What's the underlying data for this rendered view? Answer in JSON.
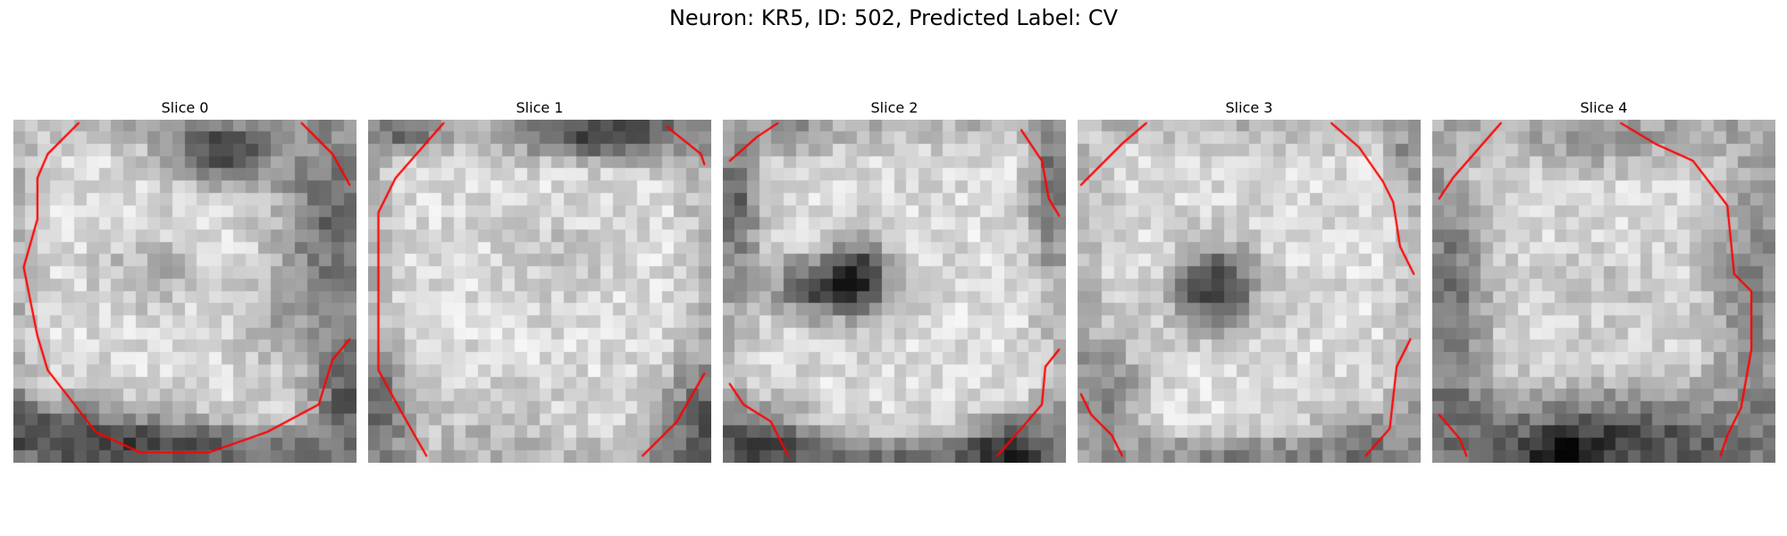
{
  "figure": {
    "title": "Neuron: KR5, ID: 502, Predicted Label: CV"
  },
  "colors": {
    "contour": "#ff0000",
    "background": "#ffffff"
  },
  "slices": [
    {
      "label": "Slice 0",
      "dark_spots": [
        [
          0.6,
          0.1,
          0.16,
          0.09,
          0.55
        ],
        [
          0.9,
          0.3,
          0.14,
          0.3,
          0.4
        ],
        [
          0.1,
          0.9,
          0.3,
          0.1,
          0.4
        ],
        [
          0.5,
          0.95,
          0.4,
          0.08,
          0.4
        ],
        [
          0.95,
          0.8,
          0.1,
          0.2,
          0.35
        ],
        [
          0.4,
          0.45,
          0.15,
          0.1,
          0.18
        ],
        [
          0.75,
          0.6,
          0.12,
          0.12,
          0.15
        ]
      ],
      "contours": [
        [
          [
            0.19,
            0.01
          ],
          [
            0.1,
            0.1
          ],
          [
            0.07,
            0.17
          ],
          [
            0.07,
            0.29
          ],
          [
            0.03,
            0.43
          ],
          [
            0.07,
            0.63
          ],
          [
            0.1,
            0.73
          ],
          [
            0.24,
            0.91
          ],
          [
            0.37,
            0.97
          ],
          [
            0.57,
            0.97
          ],
          [
            0.74,
            0.91
          ],
          [
            0.89,
            0.83
          ],
          [
            0.93,
            0.7
          ],
          [
            0.98,
            0.64
          ]
        ],
        [
          [
            0.84,
            0.01
          ],
          [
            0.93,
            0.1
          ],
          [
            0.98,
            0.19
          ]
        ]
      ]
    },
    {
      "label": "Slice 1",
      "dark_spots": [
        [
          0.7,
          0.05,
          0.25,
          0.07,
          0.55
        ],
        [
          0.1,
          0.05,
          0.12,
          0.06,
          0.35
        ],
        [
          0.95,
          0.9,
          0.12,
          0.18,
          0.4
        ],
        [
          0.05,
          0.85,
          0.08,
          0.18,
          0.35
        ],
        [
          0.35,
          0.85,
          0.2,
          0.1,
          0.12
        ],
        [
          0.55,
          0.4,
          0.15,
          0.12,
          0.1
        ]
      ],
      "contours": [
        [
          [
            0.22,
            0.01
          ],
          [
            0.08,
            0.17
          ],
          [
            0.03,
            0.27
          ],
          [
            0.03,
            0.73
          ],
          [
            0.09,
            0.84
          ],
          [
            0.17,
            0.98
          ]
        ],
        [
          [
            0.87,
            0.02
          ],
          [
            0.97,
            0.1
          ],
          [
            0.98,
            0.13
          ]
        ],
        [
          [
            0.8,
            0.98
          ],
          [
            0.9,
            0.88
          ],
          [
            0.98,
            0.74
          ]
        ]
      ]
    },
    {
      "label": "Slice 2",
      "dark_spots": [
        [
          0.31,
          0.49,
          0.16,
          0.09,
          0.6
        ],
        [
          0.4,
          0.43,
          0.08,
          0.11,
          0.4
        ],
        [
          0.05,
          0.25,
          0.06,
          0.22,
          0.35
        ],
        [
          0.95,
          0.2,
          0.06,
          0.22,
          0.35
        ],
        [
          0.1,
          0.93,
          0.18,
          0.1,
          0.45
        ],
        [
          0.85,
          0.95,
          0.15,
          0.1,
          0.5
        ],
        [
          0.5,
          0.98,
          0.35,
          0.05,
          0.3
        ],
        [
          0.2,
          0.05,
          0.1,
          0.05,
          0.25
        ]
      ],
      "contours": [
        [
          [
            0.02,
            0.12
          ],
          [
            0.1,
            0.05
          ],
          [
            0.16,
            0.01
          ]
        ],
        [
          [
            0.87,
            0.03
          ],
          [
            0.93,
            0.12
          ],
          [
            0.95,
            0.23
          ],
          [
            0.98,
            0.28
          ]
        ],
        [
          [
            0.02,
            0.77
          ],
          [
            0.06,
            0.83
          ],
          [
            0.14,
            0.88
          ],
          [
            0.19,
            0.98
          ]
        ],
        [
          [
            0.8,
            0.98
          ],
          [
            0.87,
            0.9
          ],
          [
            0.93,
            0.83
          ],
          [
            0.94,
            0.72
          ],
          [
            0.98,
            0.67
          ]
        ]
      ]
    },
    {
      "label": "Slice 3",
      "dark_spots": [
        [
          0.4,
          0.49,
          0.12,
          0.12,
          0.65
        ],
        [
          0.1,
          0.8,
          0.1,
          0.18,
          0.3
        ],
        [
          0.85,
          0.92,
          0.15,
          0.1,
          0.3
        ],
        [
          0.5,
          0.97,
          0.3,
          0.05,
          0.22
        ],
        [
          0.95,
          0.1,
          0.05,
          0.1,
          0.2
        ]
      ],
      "contours": [
        [
          [
            0.01,
            0.19
          ],
          [
            0.13,
            0.07
          ],
          [
            0.2,
            0.01
          ]
        ],
        [
          [
            0.74,
            0.01
          ],
          [
            0.82,
            0.08
          ],
          [
            0.89,
            0.18
          ],
          [
            0.92,
            0.24
          ],
          [
            0.94,
            0.37
          ],
          [
            0.98,
            0.45
          ]
        ],
        [
          [
            0.01,
            0.8
          ],
          [
            0.04,
            0.86
          ],
          [
            0.1,
            0.92
          ],
          [
            0.13,
            0.98
          ]
        ],
        [
          [
            0.84,
            0.98
          ],
          [
            0.91,
            0.9
          ],
          [
            0.93,
            0.72
          ],
          [
            0.97,
            0.64
          ]
        ]
      ]
    },
    {
      "label": "Slice 4",
      "dark_spots": [
        [
          0.5,
          0.92,
          0.45,
          0.13,
          0.55
        ],
        [
          0.38,
          0.98,
          0.08,
          0.05,
          0.4
        ],
        [
          0.08,
          0.55,
          0.1,
          0.4,
          0.35
        ],
        [
          0.9,
          0.5,
          0.1,
          0.4,
          0.3
        ],
        [
          0.5,
          0.08,
          0.25,
          0.08,
          0.2
        ],
        [
          0.5,
          0.5,
          0.2,
          0.15,
          0.08
        ]
      ],
      "contours": [
        [
          [
            0.2,
            0.01
          ],
          [
            0.06,
            0.17
          ],
          [
            0.02,
            0.23
          ]
        ],
        [
          [
            0.55,
            0.01
          ],
          [
            0.65,
            0.07
          ],
          [
            0.76,
            0.12
          ],
          [
            0.86,
            0.25
          ],
          [
            0.88,
            0.45
          ],
          [
            0.93,
            0.5
          ],
          [
            0.93,
            0.67
          ],
          [
            0.9,
            0.84
          ],
          [
            0.86,
            0.92
          ],
          [
            0.84,
            0.98
          ]
        ],
        [
          [
            0.02,
            0.86
          ],
          [
            0.08,
            0.93
          ],
          [
            0.1,
            0.98
          ]
        ]
      ]
    }
  ]
}
